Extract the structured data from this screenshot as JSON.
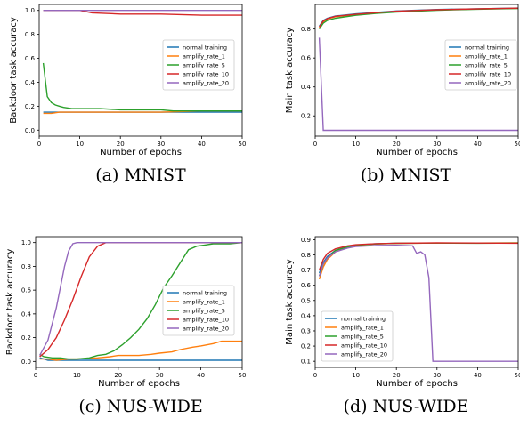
{
  "colors": {
    "normal training": "#1f77b4",
    "amplify_rate_1": "#ff7f0e",
    "amplify_rate_5": "#2ca02c",
    "amplify_rate_10": "#d62728",
    "amplify_rate_20": "#9467bd"
  },
  "captions": [
    "(a) MNIST",
    "(b) MNIST",
    "(c) NUS-WIDE",
    "(d) NUS-WIDE"
  ],
  "chart_data": [
    {
      "type": "line",
      "xlabel": "Number of epochs",
      "ylabel": "Backdoor task accuracy",
      "xlim": [
        0,
        50
      ],
      "ylim": [
        -0.05,
        1.05
      ],
      "xticks": [
        0,
        10,
        20,
        30,
        40,
        50
      ],
      "yticks": [
        0.0,
        0.2,
        0.4,
        0.6,
        0.8,
        1.0
      ],
      "ytick_labels": [
        "0.0",
        "0.2",
        "0.4",
        "0.6",
        "0.8",
        "1.0"
      ],
      "grid": false,
      "legend_position": "center-right",
      "series": [
        {
          "name": "normal training",
          "x": [
            1,
            3,
            5,
            10,
            20,
            30,
            40,
            50
          ],
          "y": [
            0.15,
            0.15,
            0.15,
            0.15,
            0.15,
            0.15,
            0.15,
            0.15
          ]
        },
        {
          "name": "amplify_rate_1",
          "x": [
            1,
            3,
            5,
            10,
            20,
            30,
            40,
            50
          ],
          "y": [
            0.14,
            0.14,
            0.15,
            0.15,
            0.15,
            0.15,
            0.16,
            0.16
          ]
        },
        {
          "name": "amplify_rate_5",
          "x": [
            1,
            2,
            3,
            4,
            5,
            6,
            8,
            10,
            15,
            20,
            30,
            33,
            40,
            50
          ],
          "y": [
            0.56,
            0.28,
            0.23,
            0.21,
            0.2,
            0.19,
            0.18,
            0.18,
            0.18,
            0.17,
            0.17,
            0.16,
            0.16,
            0.16
          ]
        },
        {
          "name": "amplify_rate_10",
          "x": [
            1,
            5,
            10,
            13,
            20,
            30,
            40,
            50
          ],
          "y": [
            1.0,
            1.0,
            1.0,
            0.98,
            0.97,
            0.97,
            0.96,
            0.96
          ]
        },
        {
          "name": "amplify_rate_20",
          "x": [
            1,
            10,
            20,
            30,
            40,
            50
          ],
          "y": [
            1.0,
            1.0,
            1.0,
            1.0,
            1.0,
            1.0
          ]
        }
      ]
    },
    {
      "type": "line",
      "xlabel": "Number of epochs",
      "ylabel": "Main task accuracy",
      "xlim": [
        0,
        50
      ],
      "ylim": [
        0.06,
        0.97
      ],
      "xticks": [
        0,
        10,
        20,
        30,
        40,
        50
      ],
      "yticks": [
        0.2,
        0.4,
        0.6,
        0.8
      ],
      "ytick_labels": [
        "0.2",
        "0.4",
        "0.6",
        "0.8"
      ],
      "grid": false,
      "legend_position": "center-right",
      "series": [
        {
          "name": "normal training",
          "x": [
            1,
            2,
            3,
            5,
            10,
            15,
            20,
            30,
            40,
            50
          ],
          "y": [
            0.82,
            0.86,
            0.875,
            0.89,
            0.905,
            0.915,
            0.925,
            0.935,
            0.94,
            0.945
          ]
        },
        {
          "name": "amplify_rate_1",
          "x": [
            1,
            2,
            3,
            5,
            10,
            15,
            20,
            30,
            40,
            50
          ],
          "y": [
            0.81,
            0.85,
            0.87,
            0.885,
            0.9,
            0.912,
            0.922,
            0.932,
            0.938,
            0.943
          ]
        },
        {
          "name": "amplify_rate_5",
          "x": [
            1,
            2,
            3,
            5,
            10,
            15,
            20,
            30,
            40,
            50
          ],
          "y": [
            0.8,
            0.84,
            0.86,
            0.875,
            0.895,
            0.908,
            0.918,
            0.93,
            0.937,
            0.942
          ]
        },
        {
          "name": "amplify_rate_10",
          "x": [
            1,
            2,
            3,
            5,
            10,
            15,
            20,
            30,
            40,
            50
          ],
          "y": [
            0.815,
            0.855,
            0.872,
            0.888,
            0.902,
            0.913,
            0.923,
            0.933,
            0.939,
            0.944
          ]
        },
        {
          "name": "amplify_rate_20",
          "x": [
            1,
            2,
            3,
            10,
            20,
            30,
            40,
            50
          ],
          "y": [
            0.74,
            0.1,
            0.1,
            0.1,
            0.1,
            0.1,
            0.1,
            0.1
          ]
        }
      ]
    },
    {
      "type": "line",
      "xlabel": "Number of epochs",
      "ylabel": "Backdoor task accuracy",
      "xlim": [
        0,
        50
      ],
      "ylim": [
        -0.05,
        1.05
      ],
      "xticks": [
        0,
        10,
        20,
        30,
        40,
        50
      ],
      "yticks": [
        0.0,
        0.2,
        0.4,
        0.6,
        0.8,
        1.0
      ],
      "ytick_labels": [
        "0.0",
        "0.2",
        "0.4",
        "0.6",
        "0.8",
        "1.0"
      ],
      "grid": false,
      "legend_position": "center-right",
      "series": [
        {
          "name": "normal training",
          "x": [
            1,
            2,
            3,
            5,
            10,
            20,
            30,
            40,
            50
          ],
          "y": [
            0.03,
            0.02,
            0.01,
            0.01,
            0.01,
            0.01,
            0.01,
            0.01,
            0.01
          ]
        },
        {
          "name": "amplify_rate_1",
          "x": [
            1,
            3,
            5,
            8,
            10,
            15,
            18,
            20,
            25,
            28,
            30,
            33,
            35,
            38,
            40,
            43,
            45,
            50
          ],
          "y": [
            0.02,
            0.02,
            0.01,
            0.02,
            0.02,
            0.03,
            0.04,
            0.05,
            0.05,
            0.06,
            0.07,
            0.08,
            0.1,
            0.12,
            0.13,
            0.15,
            0.17,
            0.17
          ]
        },
        {
          "name": "amplify_rate_5",
          "x": [
            1,
            2,
            4,
            6,
            8,
            10,
            13,
            15,
            17,
            19,
            21,
            23,
            25,
            27,
            29,
            31,
            33,
            35,
            37,
            39,
            41,
            43,
            45,
            47,
            50
          ],
          "y": [
            0.06,
            0.04,
            0.03,
            0.03,
            0.02,
            0.02,
            0.03,
            0.05,
            0.06,
            0.09,
            0.14,
            0.2,
            0.27,
            0.36,
            0.48,
            0.62,
            0.72,
            0.83,
            0.94,
            0.97,
            0.98,
            0.99,
            0.99,
            0.99,
            1.0
          ]
        },
        {
          "name": "amplify_rate_10",
          "x": [
            1,
            3,
            5,
            7,
            9,
            11,
            13,
            15,
            17,
            20,
            30,
            40,
            50
          ],
          "y": [
            0.04,
            0.1,
            0.2,
            0.35,
            0.52,
            0.71,
            0.88,
            0.97,
            1.0,
            1.0,
            1.0,
            1.0,
            1.0
          ]
        },
        {
          "name": "amplify_rate_20",
          "x": [
            1,
            3,
            5,
            7,
            8,
            9,
            10,
            12,
            20,
            30,
            40,
            50
          ],
          "y": [
            0.05,
            0.18,
            0.45,
            0.8,
            0.93,
            0.99,
            1.0,
            1.0,
            1.0,
            1.0,
            1.0,
            1.0
          ]
        }
      ]
    },
    {
      "type": "line",
      "xlabel": "Number of epochs",
      "ylabel": "Main task accuracy",
      "xlim": [
        0,
        50
      ],
      "ylim": [
        0.06,
        0.92
      ],
      "xticks": [
        0,
        10,
        20,
        30,
        40,
        50
      ],
      "yticks": [
        0.1,
        0.2,
        0.3,
        0.4,
        0.5,
        0.6,
        0.7,
        0.8,
        0.9
      ],
      "ytick_labels": [
        "0.1",
        "0.2",
        "0.3",
        "0.4",
        "0.5",
        "0.6",
        "0.7",
        "0.8",
        "0.9"
      ],
      "grid": false,
      "legend_position": "lower-left",
      "series": [
        {
          "name": "normal training",
          "x": [
            1,
            2,
            3,
            5,
            8,
            10,
            15,
            20,
            30,
            40,
            50
          ],
          "y": [
            0.68,
            0.75,
            0.79,
            0.83,
            0.855,
            0.865,
            0.873,
            0.877,
            0.878,
            0.878,
            0.878
          ]
        },
        {
          "name": "amplify_rate_1",
          "x": [
            1,
            2,
            3,
            5,
            8,
            10,
            15,
            20,
            30,
            40,
            50
          ],
          "y": [
            0.64,
            0.72,
            0.77,
            0.82,
            0.85,
            0.862,
            0.872,
            0.876,
            0.878,
            0.878,
            0.879
          ]
        },
        {
          "name": "amplify_rate_5",
          "x": [
            1,
            2,
            3,
            5,
            8,
            10,
            15,
            20,
            30,
            40,
            50
          ],
          "y": [
            0.66,
            0.74,
            0.78,
            0.83,
            0.852,
            0.863,
            0.872,
            0.876,
            0.878,
            0.877,
            0.878
          ]
        },
        {
          "name": "amplify_rate_10",
          "x": [
            1,
            2,
            3,
            5,
            8,
            10,
            15,
            20,
            30,
            40,
            50
          ],
          "y": [
            0.7,
            0.77,
            0.81,
            0.84,
            0.86,
            0.867,
            0.874,
            0.877,
            0.879,
            0.878,
            0.877
          ]
        },
        {
          "name": "amplify_rate_20",
          "x": [
            1,
            2,
            3,
            5,
            8,
            10,
            15,
            20,
            24,
            25,
            26,
            27,
            28,
            29,
            30,
            35,
            40,
            45,
            50
          ],
          "y": [
            0.66,
            0.74,
            0.78,
            0.82,
            0.845,
            0.855,
            0.862,
            0.863,
            0.86,
            0.81,
            0.82,
            0.8,
            0.65,
            0.1,
            0.1,
            0.1,
            0.1,
            0.1,
            0.1
          ]
        }
      ]
    }
  ]
}
